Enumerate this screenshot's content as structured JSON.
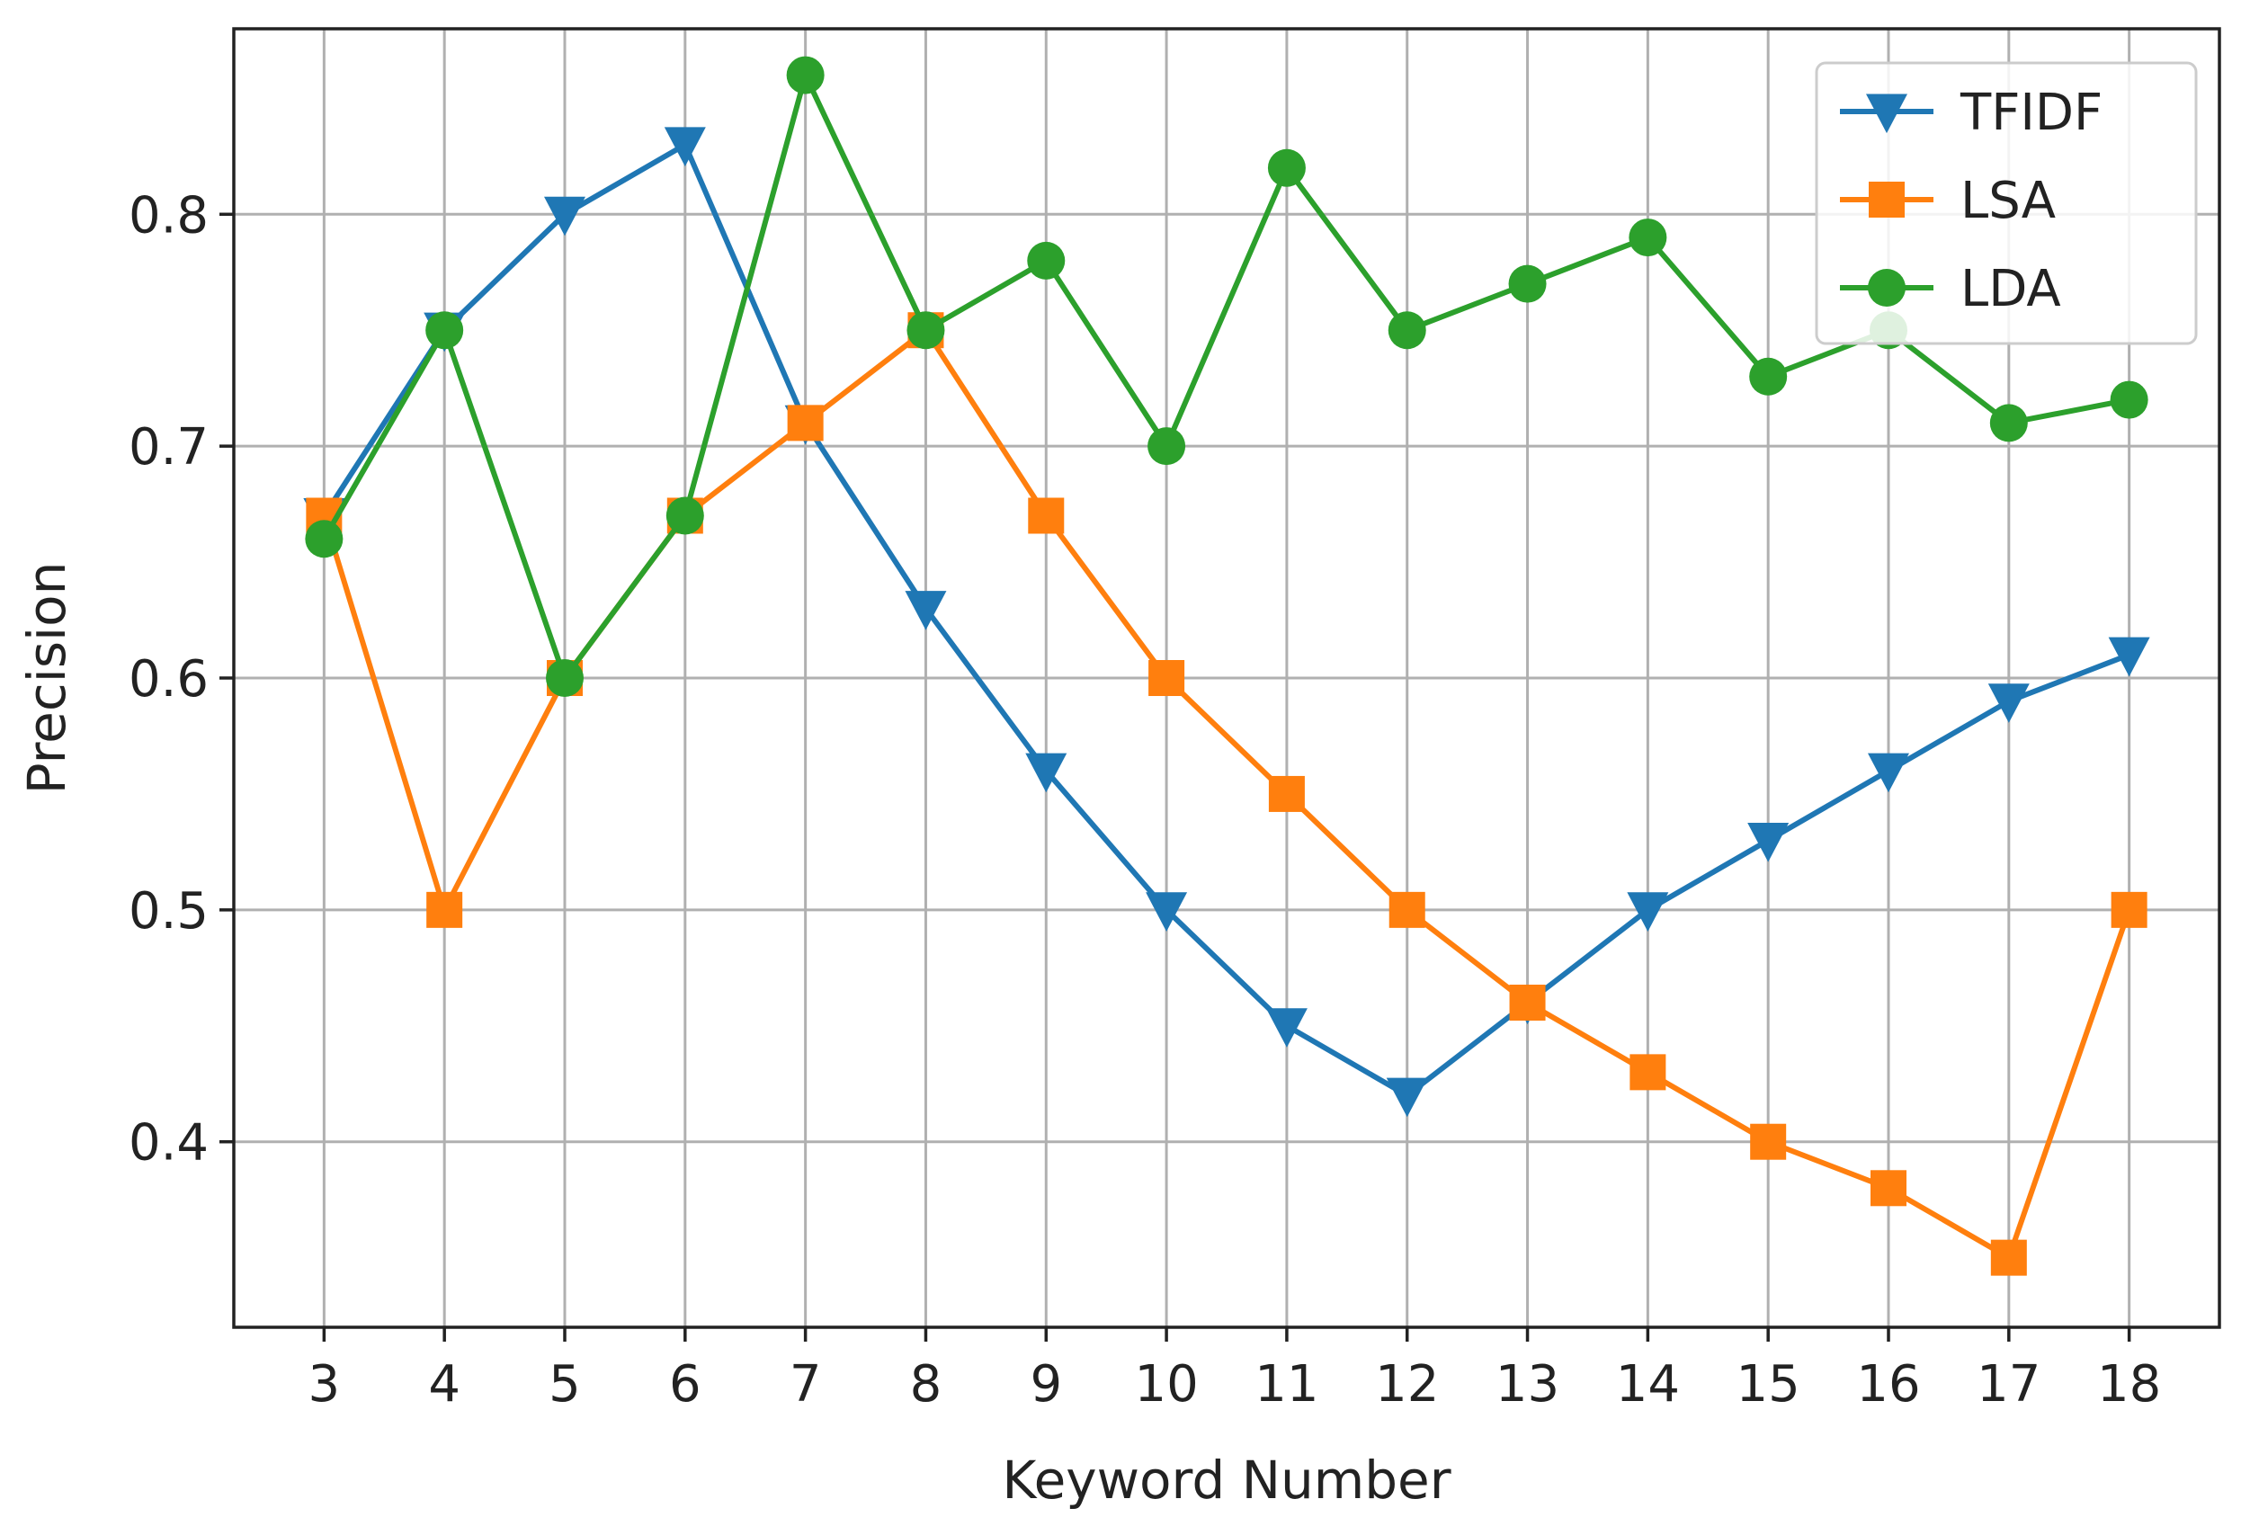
{
  "chart_data": {
    "type": "line",
    "title": "",
    "xlabel": "Keyword Number",
    "ylabel": "Precision",
    "x": [
      3,
      4,
      5,
      6,
      7,
      8,
      9,
      10,
      11,
      12,
      13,
      14,
      15,
      16,
      17,
      18
    ],
    "xlim": [
      2.25,
      18.75
    ],
    "ylim": [
      0.32,
      0.88
    ],
    "y_ticks": [
      0.4,
      0.5,
      0.6,
      0.7,
      0.8
    ],
    "y_tick_labels": [
      "0.4",
      "0.5",
      "0.6",
      "0.7",
      "0.8"
    ],
    "x_tick_labels": [
      "3",
      "4",
      "5",
      "6",
      "7",
      "8",
      "9",
      "10",
      "11",
      "12",
      "13",
      "14",
      "15",
      "16",
      "17",
      "18"
    ],
    "grid": true,
    "legend_position": "top-right",
    "series": [
      {
        "name": "TFIDF",
        "color": "#1f77b4",
        "marker": "triangle-down",
        "values": [
          0.67,
          0.75,
          0.8,
          0.83,
          0.71,
          0.63,
          0.56,
          0.5,
          0.45,
          0.42,
          0.46,
          0.5,
          0.53,
          0.56,
          0.59,
          0.61
        ]
      },
      {
        "name": "LSA",
        "color": "#ff7f0e",
        "marker": "square",
        "values": [
          0.67,
          0.5,
          0.6,
          0.67,
          0.71,
          0.75,
          0.67,
          0.6,
          0.55,
          0.5,
          0.46,
          0.43,
          0.4,
          0.38,
          0.35,
          0.5
        ]
      },
      {
        "name": "LDA",
        "color": "#2ca02c",
        "marker": "circle",
        "values": [
          0.66,
          0.75,
          0.6,
          0.67,
          0.86,
          0.75,
          0.78,
          0.7,
          0.82,
          0.75,
          0.77,
          0.79,
          0.73,
          0.75,
          0.71,
          0.72
        ]
      }
    ]
  }
}
